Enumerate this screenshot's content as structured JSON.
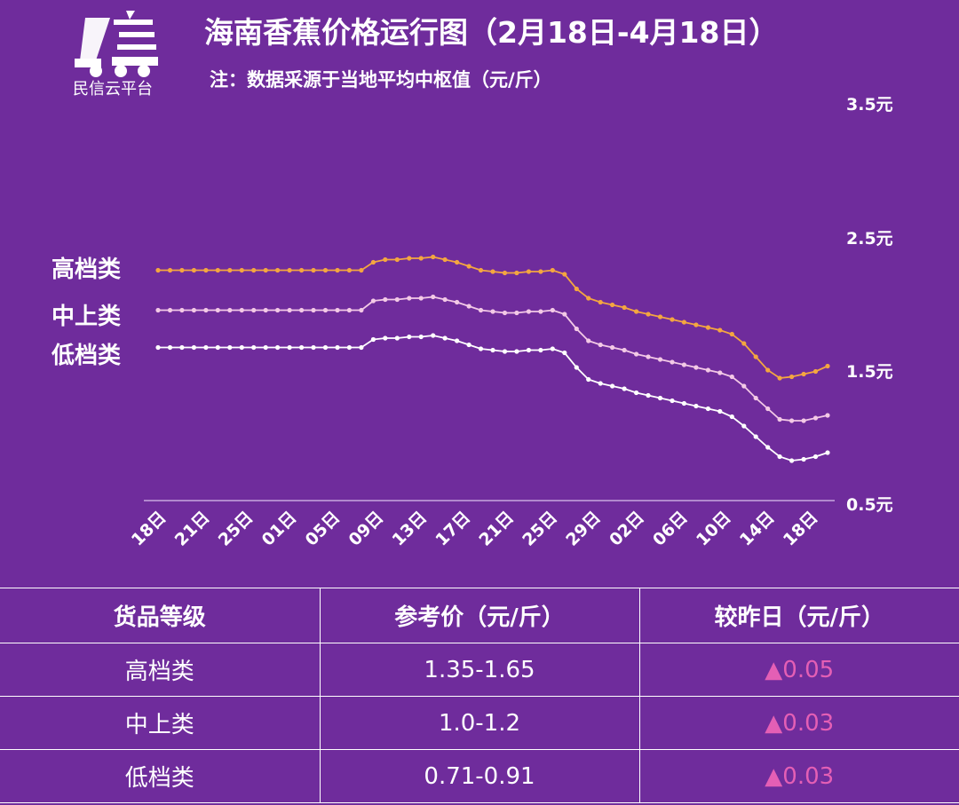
{
  "logo": {
    "text": "民信云平台",
    "icon": "truck-logo-icon"
  },
  "title": "海南香蕉价格运行图（2月18日-4月18日）",
  "subtitle": "注：数据采源于当地平均中枢值（元/斤）",
  "colors": {
    "background": "#6f2c9c",
    "high": "#f4a640",
    "mid": "#f3c9e6",
    "low": "#ffffff",
    "increase": "#e45fb5"
  },
  "chart_data": {
    "type": "line",
    "title": "海南香蕉价格运行图（2月18日-4月18日）",
    "subtitle": "注：数据采源于当地平均中枢值（元/斤）",
    "ylim": [
      0.5,
      3.5
    ],
    "yticks": [
      "0.5元",
      "1.5元",
      "2.5元",
      "3.5元"
    ],
    "x_tick_labels": [
      "18日",
      "21日",
      "25日",
      "01日",
      "05日",
      "09日",
      "13日",
      "17日",
      "21日",
      "25日",
      "29日",
      "02日",
      "06日",
      "10日",
      "14日",
      "18日"
    ],
    "series": [
      {
        "name": "高档类",
        "values": [
          2.23,
          2.23,
          2.23,
          2.23,
          2.23,
          2.23,
          2.23,
          2.23,
          2.23,
          2.23,
          2.23,
          2.23,
          2.23,
          2.23,
          2.23,
          2.23,
          2.23,
          2.23,
          2.29,
          2.31,
          2.31,
          2.32,
          2.32,
          2.33,
          2.31,
          2.29,
          2.26,
          2.23,
          2.22,
          2.21,
          2.21,
          2.22,
          2.22,
          2.23,
          2.2,
          2.09,
          2.02,
          1.99,
          1.97,
          1.95,
          1.92,
          1.9,
          1.88,
          1.86,
          1.84,
          1.82,
          1.8,
          1.78,
          1.75,
          1.68,
          1.58,
          1.48,
          1.42,
          1.43,
          1.45,
          1.47,
          1.51
        ]
      },
      {
        "name": "中上类",
        "values": [
          1.93,
          1.93,
          1.93,
          1.93,
          1.93,
          1.93,
          1.93,
          1.93,
          1.93,
          1.93,
          1.93,
          1.93,
          1.93,
          1.93,
          1.93,
          1.93,
          1.93,
          1.93,
          2.0,
          2.01,
          2.01,
          2.02,
          2.02,
          2.03,
          2.01,
          1.99,
          1.96,
          1.93,
          1.92,
          1.91,
          1.91,
          1.92,
          1.92,
          1.93,
          1.9,
          1.79,
          1.7,
          1.67,
          1.65,
          1.63,
          1.6,
          1.58,
          1.56,
          1.54,
          1.52,
          1.5,
          1.48,
          1.46,
          1.43,
          1.36,
          1.27,
          1.19,
          1.11,
          1.1,
          1.1,
          1.12,
          1.14
        ]
      },
      {
        "name": "低档类",
        "values": [
          1.65,
          1.65,
          1.65,
          1.65,
          1.65,
          1.65,
          1.65,
          1.65,
          1.65,
          1.65,
          1.65,
          1.65,
          1.65,
          1.65,
          1.65,
          1.65,
          1.65,
          1.65,
          1.71,
          1.72,
          1.72,
          1.73,
          1.73,
          1.74,
          1.72,
          1.7,
          1.67,
          1.64,
          1.63,
          1.62,
          1.62,
          1.63,
          1.63,
          1.64,
          1.61,
          1.5,
          1.41,
          1.38,
          1.36,
          1.34,
          1.31,
          1.29,
          1.27,
          1.25,
          1.23,
          1.21,
          1.19,
          1.17,
          1.13,
          1.06,
          0.98,
          0.9,
          0.83,
          0.8,
          0.81,
          0.83,
          0.86
        ]
      }
    ]
  },
  "table": {
    "headers": [
      "货品等级",
      "参考价（元/斤）",
      "较昨日（元/斤）"
    ],
    "rows": [
      {
        "grade": "高档类",
        "price": "1.35-1.65",
        "change": "▲0.05"
      },
      {
        "grade": "中上类",
        "price": "1.0-1.2",
        "change": "▲0.03"
      },
      {
        "grade": "低档类",
        "price": "0.71-0.91",
        "change": "▲0.03"
      }
    ]
  }
}
